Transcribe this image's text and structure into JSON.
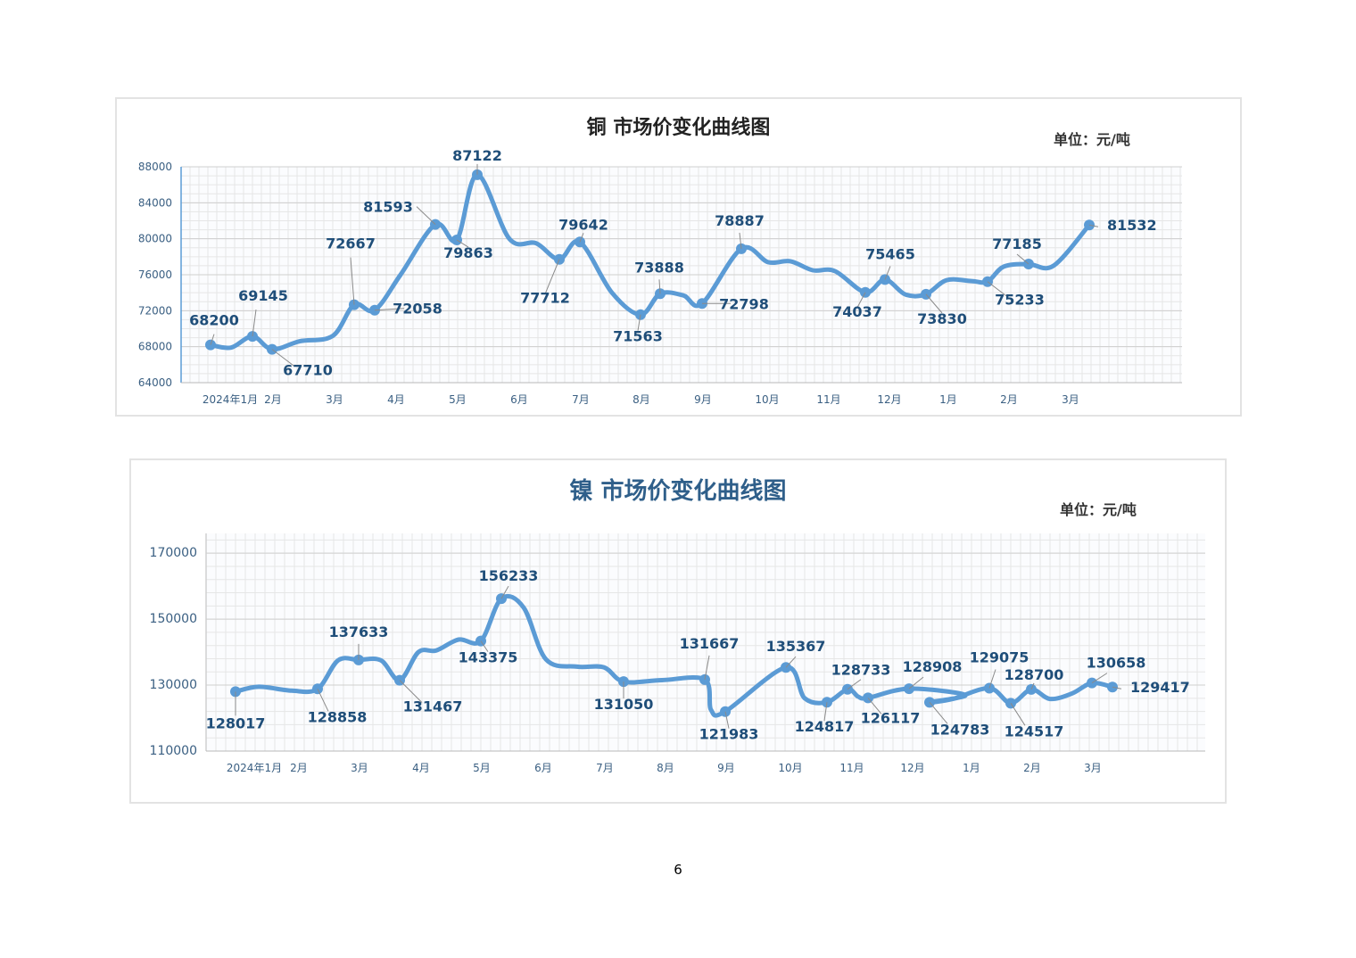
{
  "colors": {
    "line": "#5b9bd5",
    "label": "#1f4e79",
    "grid_minor": "#e6e6e6",
    "grid_major": "#cfcfcf",
    "tick": "#3a5f82"
  },
  "page_number": "6",
  "chart_data": [
    {
      "type": "line",
      "title": "铜  市场价变化曲线图",
      "unit": "单位：元/吨",
      "ylim": [
        64000,
        88000
      ],
      "yticks": [
        "64000",
        "68000",
        "72000",
        "76000",
        "80000",
        "84000",
        "88000"
      ],
      "x_tick_labels": [
        "2024年1月",
        "2月",
        "3月",
        "4月",
        "5月",
        "6月",
        "7月",
        "8月",
        "9月",
        "10月",
        "11月",
        "12月",
        "1月",
        "2月",
        "3月"
      ],
      "grid": true,
      "series": [
        {
          "values": [
            68200,
            69145,
            67710,
            72667,
            72058,
            81593,
            79863,
            87122,
            77712,
            79642,
            71563,
            73888,
            72798,
            78887,
            74037,
            75465,
            73830,
            75233,
            77185,
            81532
          ]
        }
      ],
      "data_labels": [
        "68200",
        "69145",
        "67710",
        "72667",
        "72058",
        "81593",
        "79863",
        "87122",
        "77712",
        "79642",
        "71563",
        "73888",
        "72798",
        "78887",
        "74037",
        "75465",
        "73830",
        "75233",
        "77185",
        "81532"
      ]
    },
    {
      "type": "line",
      "title": "镍  市场价变化曲线图",
      "unit": "单位：元/吨",
      "ylim": [
        110000,
        176000
      ],
      "yticks": [
        "110000",
        "130000",
        "150000",
        "170000"
      ],
      "x_tick_labels": [
        "2024年1月",
        "2月",
        "3月",
        "4月",
        "5月",
        "6月",
        "7月",
        "8月",
        "9月",
        "10月",
        "11月",
        "12月",
        "1月",
        "2月",
        "3月"
      ],
      "grid": true,
      "series": [
        {
          "values": [
            128017,
            128858,
            137633,
            131467,
            143375,
            156233,
            131050,
            131667,
            121983,
            135367,
            124817,
            128733,
            126117,
            128908,
            124783,
            129075,
            124517,
            128700,
            130658,
            129417
          ]
        }
      ],
      "data_labels": [
        "128017",
        "128858",
        "137633",
        "131467",
        "143375",
        "156233",
        "131050",
        "131667",
        "121983",
        "135367",
        "124817",
        "128733",
        "126117",
        "128908",
        "124783",
        "129075",
        "124517",
        "128700",
        "130658",
        "129417"
      ]
    }
  ]
}
